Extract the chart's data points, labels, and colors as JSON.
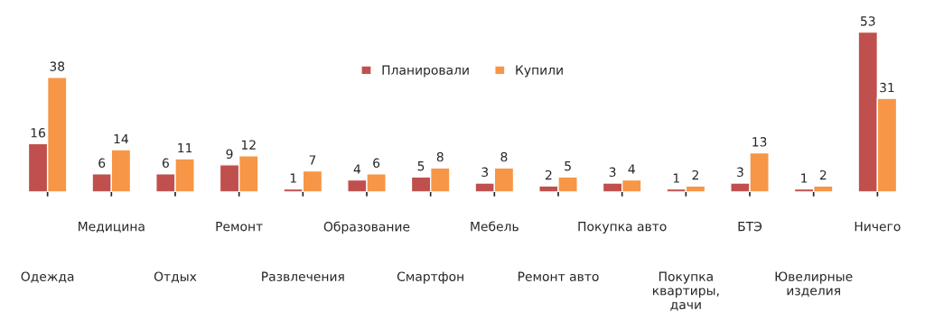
{
  "chart_data": {
    "type": "bar",
    "categories": [
      "Одежда",
      "Медицина",
      "Отдых",
      "Ремонт",
      "Развлечения",
      "Образование",
      "Смартфон",
      "Мебель",
      "Ремонт авто",
      "Покупка авто",
      "Покупка\nквартиры,\nдачи",
      "БТЭ",
      "Ювелирные\nизделия",
      "Ничего"
    ],
    "series": [
      {
        "name": "Планировали",
        "color": "#c0504d",
        "values": [
          16,
          6,
          6,
          9,
          1,
          4,
          5,
          3,
          2,
          3,
          1,
          3,
          1,
          53
        ]
      },
      {
        "name": "Купили",
        "color": "#f79646",
        "values": [
          38,
          14,
          11,
          12,
          7,
          6,
          8,
          8,
          5,
          4,
          2,
          13,
          2,
          31
        ]
      }
    ],
    "data_labels": true,
    "legend": "top",
    "grid": false
  }
}
